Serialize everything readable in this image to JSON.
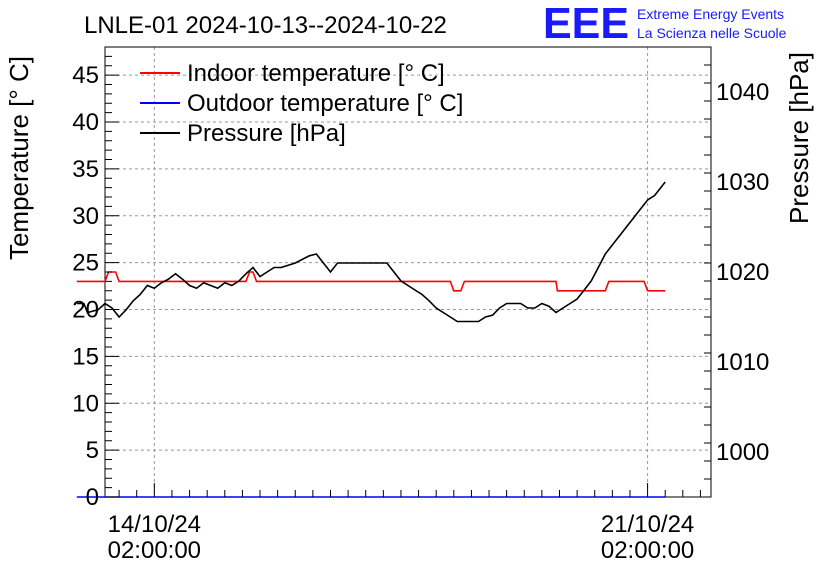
{
  "header": {
    "title": "LNLE-01 2024-10-13--2024-10-22",
    "logo_text": "EEE",
    "logo_line1": "Extreme Energy Events",
    "logo_line2": "La Scienza nelle Scuole"
  },
  "colors": {
    "indoor": "#ff0000",
    "outdoor": "#0000ff",
    "pressure": "#000000",
    "logo": "#1a1aff"
  },
  "chart_data": {
    "type": "line",
    "title": "LNLE-01 2024-10-13--2024-10-22",
    "ylabel": "Temperature [° C]",
    "y2label": "Pressure [hPa]",
    "ylim": [
      0,
      48
    ],
    "y2lim": [
      995,
      1045
    ],
    "xlim": [
      -0.7,
      7.9
    ],
    "grid": true,
    "legend_position": "top-left",
    "y_ticks": [
      0,
      5,
      10,
      15,
      20,
      25,
      30,
      35,
      40,
      45
    ],
    "y2_ticks": [
      1000,
      1010,
      1020,
      1030,
      1040
    ],
    "x_ticks": [
      {
        "x": 0,
        "date": "14/10/24",
        "time": "02:00:00"
      },
      {
        "x": 7,
        "date": "21/10/24",
        "time": "02:00:00"
      }
    ],
    "series": [
      {
        "name": "Indoor temperature [° C]",
        "axis": "left",
        "points": [
          [
            -1.1,
            23
          ],
          [
            -0.7,
            23
          ],
          [
            -0.65,
            24
          ],
          [
            -0.55,
            24
          ],
          [
            -0.5,
            23
          ],
          [
            1.3,
            23
          ],
          [
            1.35,
            24
          ],
          [
            1.4,
            24
          ],
          [
            1.45,
            23
          ],
          [
            4.2,
            23
          ],
          [
            4.25,
            22
          ],
          [
            4.35,
            22
          ],
          [
            4.4,
            23
          ],
          [
            5.7,
            23
          ],
          [
            5.72,
            22
          ],
          [
            6.4,
            22
          ],
          [
            6.45,
            23
          ],
          [
            6.95,
            23
          ],
          [
            7.0,
            22
          ],
          [
            7.25,
            22
          ]
        ]
      },
      {
        "name": "Outdoor temperature [° C]",
        "axis": "left",
        "points": [
          [
            -1.1,
            0
          ],
          [
            7.25,
            0
          ]
        ]
      },
      {
        "name": "Pressure [hPa]",
        "axis": "right",
        "points": [
          [
            -1.1,
            1016.5
          ],
          [
            -1.0,
            1016.5
          ],
          [
            -0.95,
            1015.5
          ],
          [
            -0.8,
            1015.8
          ],
          [
            -0.7,
            1016.5
          ],
          [
            -0.6,
            1016
          ],
          [
            -0.5,
            1015
          ],
          [
            -0.4,
            1015.8
          ],
          [
            -0.3,
            1016.8
          ],
          [
            -0.2,
            1017.5
          ],
          [
            -0.1,
            1018.5
          ],
          [
            0.0,
            1018.2
          ],
          [
            0.1,
            1018.8
          ],
          [
            0.2,
            1019.2
          ],
          [
            0.3,
            1019.8
          ],
          [
            0.4,
            1019.2
          ],
          [
            0.5,
            1018.5
          ],
          [
            0.6,
            1018.2
          ],
          [
            0.7,
            1018.8
          ],
          [
            0.8,
            1018.5
          ],
          [
            0.9,
            1018.2
          ],
          [
            1.0,
            1018.8
          ],
          [
            1.1,
            1018.5
          ],
          [
            1.2,
            1019
          ],
          [
            1.3,
            1019.8
          ],
          [
            1.4,
            1020.5
          ],
          [
            1.5,
            1019.5
          ],
          [
            1.6,
            1020
          ],
          [
            1.7,
            1020.5
          ],
          [
            1.8,
            1020.5
          ],
          [
            2.0,
            1021
          ],
          [
            2.2,
            1021.8
          ],
          [
            2.3,
            1022
          ],
          [
            2.4,
            1021
          ],
          [
            2.5,
            1020
          ],
          [
            2.6,
            1021
          ],
          [
            2.8,
            1021
          ],
          [
            3.1,
            1021
          ],
          [
            3.3,
            1021
          ],
          [
            3.4,
            1020
          ],
          [
            3.5,
            1019
          ],
          [
            3.6,
            1018.5
          ],
          [
            3.7,
            1018
          ],
          [
            3.8,
            1017.5
          ],
          [
            3.9,
            1016.8
          ],
          [
            4.0,
            1016
          ],
          [
            4.1,
            1015.5
          ],
          [
            4.2,
            1015
          ],
          [
            4.3,
            1014.5
          ],
          [
            4.4,
            1014.5
          ],
          [
            4.6,
            1014.5
          ],
          [
            4.7,
            1015
          ],
          [
            4.8,
            1015.2
          ],
          [
            4.9,
            1016
          ],
          [
            5.0,
            1016.5
          ],
          [
            5.2,
            1016.5
          ],
          [
            5.3,
            1016
          ],
          [
            5.4,
            1016
          ],
          [
            5.5,
            1016.5
          ],
          [
            5.6,
            1016.2
          ],
          [
            5.7,
            1015.5
          ],
          [
            5.8,
            1016
          ],
          [
            5.9,
            1016.5
          ],
          [
            6.0,
            1017
          ],
          [
            6.1,
            1018
          ],
          [
            6.2,
            1019
          ],
          [
            6.3,
            1020.5
          ],
          [
            6.4,
            1022
          ],
          [
            6.5,
            1023
          ],
          [
            6.6,
            1024
          ],
          [
            6.7,
            1025
          ],
          [
            6.8,
            1026
          ],
          [
            6.9,
            1027
          ],
          [
            7.0,
            1028
          ],
          [
            7.1,
            1028.5
          ],
          [
            7.2,
            1029.5
          ],
          [
            7.25,
            1030
          ]
        ]
      }
    ]
  }
}
